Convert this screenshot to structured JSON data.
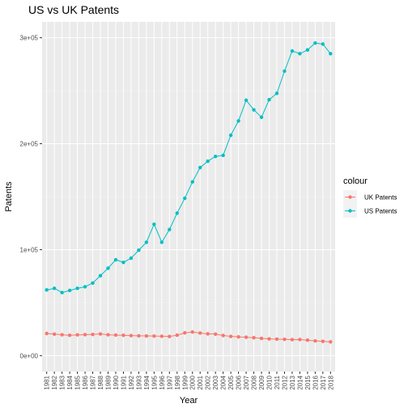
{
  "chart_data": {
    "type": "line",
    "title": "US vs UK Patents",
    "xlabel": "Year",
    "ylabel": "Patents",
    "x": [
      1981,
      1982,
      1983,
      1984,
      1985,
      1986,
      1987,
      1988,
      1989,
      1990,
      1991,
      1992,
      1993,
      1994,
      1995,
      1996,
      1997,
      1998,
      1999,
      2000,
      2001,
      2002,
      2003,
      2004,
      2005,
      2006,
      2007,
      2008,
      2009,
      2010,
      2011,
      2012,
      2013,
      2014,
      2015,
      2016,
      2017,
      2018
    ],
    "x_tick_labels": [
      "1981",
      "1982",
      "1983",
      "1984",
      "1985",
      "1986",
      "1987",
      "1988",
      "1989",
      "1990",
      "1991",
      "1992",
      "1993",
      "1994",
      "1995",
      "1996",
      "1997",
      "1998",
      "1999",
      "2000",
      "2001",
      "2002",
      "2003",
      "2004",
      "2005",
      "2006",
      "2007",
      "2008",
      "2009",
      "2010",
      "2011",
      "2012",
      "2013",
      "2014",
      "2015",
      "2016",
      "2017",
      "2018"
    ],
    "ylim": [
      0,
      300000
    ],
    "y_ticks": [
      0,
      100000,
      200000,
      300000
    ],
    "y_tick_labels": [
      "0e+00",
      "1e+05",
      "2e+05",
      "3e+05"
    ],
    "legend": {
      "title": "colour",
      "position": "right"
    },
    "grid": true,
    "series": [
      {
        "name": "UK Patents",
        "color": "#F8766D",
        "values": [
          20900,
          20300,
          19700,
          19200,
          19600,
          19800,
          20000,
          20500,
          19700,
          19400,
          19200,
          18900,
          18700,
          18600,
          18500,
          18300,
          18100,
          19300,
          21500,
          22300,
          21300,
          20600,
          20300,
          19000,
          18200,
          17700,
          17400,
          16900,
          16300,
          15800,
          15600,
          15400,
          15100,
          15200,
          14600,
          13900,
          13500,
          13000
        ]
      },
      {
        "name": "US Patents",
        "color": "#00BFC4",
        "values": [
          62000,
          63500,
          59500,
          61500,
          63500,
          65000,
          68500,
          75500,
          82500,
          90500,
          88000,
          92000,
          99500,
          107000,
          124000,
          107000,
          119000,
          134500,
          148500,
          164000,
          177500,
          183500,
          188000,
          189000,
          208000,
          221500,
          241000,
          232000,
          225000,
          241500,
          247500,
          268500,
          287500,
          285000,
          288500,
          295000,
          294000,
          285000
        ]
      }
    ]
  }
}
